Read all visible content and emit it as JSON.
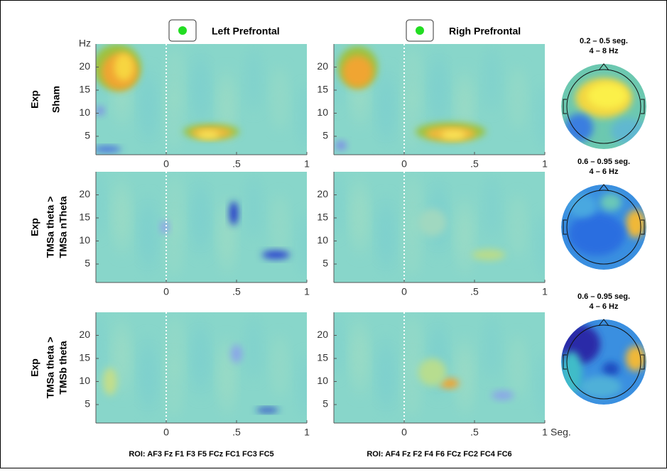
{
  "columns": [
    {
      "title": "Left Prefrontal",
      "roi": "ROI: AF3 Fz F1 F3 F5 FCz FC1 FC3 FC5"
    },
    {
      "title": "Righ Prefrontal",
      "roi": "ROI: AF4 Fz F2 F4 F6 FCz FC2 FC4 FC6"
    }
  ],
  "rows": [
    {
      "label": "Exp",
      "sublabel": [
        "Sham"
      ],
      "topo_title": "0.2 – 0.5 seg.",
      "topo_band": "4 – 8 Hz"
    },
    {
      "label": "Exp",
      "sublabel": [
        "TMSa theta >",
        "TMSa  nTheta"
      ],
      "topo_title": "0.6 – 0.95 seg.",
      "topo_band": "4 – 6 Hz"
    },
    {
      "label": "Exp",
      "sublabel": [
        "TMSa theta >",
        "TMSb theta"
      ],
      "topo_title": "0.6 – 0.95 seg.",
      "topo_band": "4 – 6 Hz"
    }
  ],
  "axes": {
    "y_unit": "Hz",
    "x_unit": "Seg.",
    "xlim": [
      -0.5,
      1
    ],
    "ylim": [
      1,
      25
    ],
    "xticks": [
      0,
      {
        "value": 0.5,
        "label": ".5"
      },
      1
    ],
    "yticks": [
      5,
      10,
      15,
      20
    ]
  }
}
